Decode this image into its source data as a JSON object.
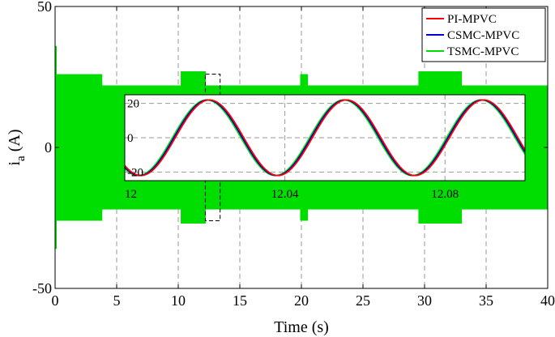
{
  "chart_data": {
    "type": "line",
    "title": "",
    "xlabel": "Time (s)",
    "ylabel": "i",
    "ylabel_sub": "a",
    "ylabel_unit": " (A)",
    "xlim": [
      0,
      40
    ],
    "ylim": [
      -50,
      50
    ],
    "xticks": [
      0,
      5,
      10,
      15,
      20,
      25,
      30,
      35,
      40
    ],
    "yticks": [
      -50,
      0,
      50
    ],
    "grid": true,
    "legend_position": "top-right",
    "series": [
      {
        "name": "PI-MPVC",
        "color": "#ff0000"
      },
      {
        "name": "CSMC-MPVC",
        "color": "#0000cc"
      },
      {
        "name": "TSMC-MPVC",
        "color": "#00dd00"
      }
    ],
    "envelope": {
      "description_color": "#00dd00",
      "segments": [
        {
          "x": [
            0,
            3.8
          ],
          "amplitude": 26
        },
        {
          "x": [
            3.8,
            10.2
          ],
          "amplitude": 22
        },
        {
          "x": [
            10.2,
            12.2
          ],
          "amplitude": 27
        },
        {
          "x": [
            12.2,
            19.9
          ],
          "amplitude": 22
        },
        {
          "x": [
            19.9,
            20.5
          ],
          "amplitude": 26
        },
        {
          "x": [
            20.5,
            29.5
          ],
          "amplitude": 22
        },
        {
          "x": [
            29.5,
            33.0
          ],
          "amplitude": 27
        },
        {
          "x": [
            33.0,
            40
          ],
          "amplitude": 22
        }
      ],
      "start_spike": 36
    },
    "zoom_box": {
      "x": [
        12.2,
        13.4
      ],
      "y": [
        -26,
        26
      ]
    },
    "inset": {
      "xlim": [
        12,
        12.1
      ],
      "ylim": [
        -25,
        25
      ],
      "xticks": [
        12,
        12.04,
        12.08
      ],
      "xtick_labels": [
        "12",
        "12.04",
        "12.08"
      ],
      "yticks": [
        -20,
        0,
        20
      ],
      "frequency_hz": 29.2,
      "amplitude": 22,
      "phase_shift_s": {
        "PI-MPVC": 0.0007,
        "CSMC-MPVC": 0.00035,
        "TSMC-MPVC": 0
      }
    }
  }
}
